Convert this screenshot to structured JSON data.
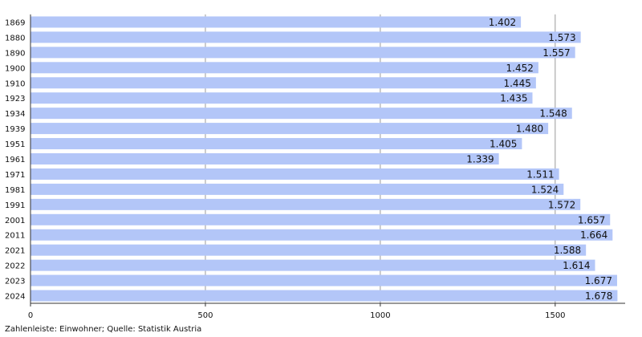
{
  "chart_data": {
    "type": "barh",
    "categories": [
      "1869",
      "1880",
      "1890",
      "1900",
      "1910",
      "1923",
      "1934",
      "1939",
      "1951",
      "1961",
      "1971",
      "1981",
      "1991",
      "2001",
      "2011",
      "2021",
      "2022",
      "2023",
      "2024"
    ],
    "values": [
      1402,
      1573,
      1557,
      1452,
      1445,
      1435,
      1548,
      1480,
      1405,
      1339,
      1511,
      1524,
      1572,
      1657,
      1664,
      1588,
      1614,
      1677,
      1678
    ],
    "value_labels": [
      "1.402",
      "1.573",
      "1.557",
      "1.452",
      "1.445",
      "1.435",
      "1.548",
      "1.480",
      "1.405",
      "1.339",
      "1.511",
      "1.524",
      "1.572",
      "1.657",
      "1.664",
      "1.588",
      "1.614",
      "1.677",
      "1.678"
    ],
    "color": "#b3c6f8",
    "xlim": [
      0,
      1700
    ],
    "xticks": [
      0,
      500,
      1000,
      1500
    ],
    "grid": true,
    "caption": "Zahlenleiste: Einwohner; Quelle: Statistik Austria"
  }
}
